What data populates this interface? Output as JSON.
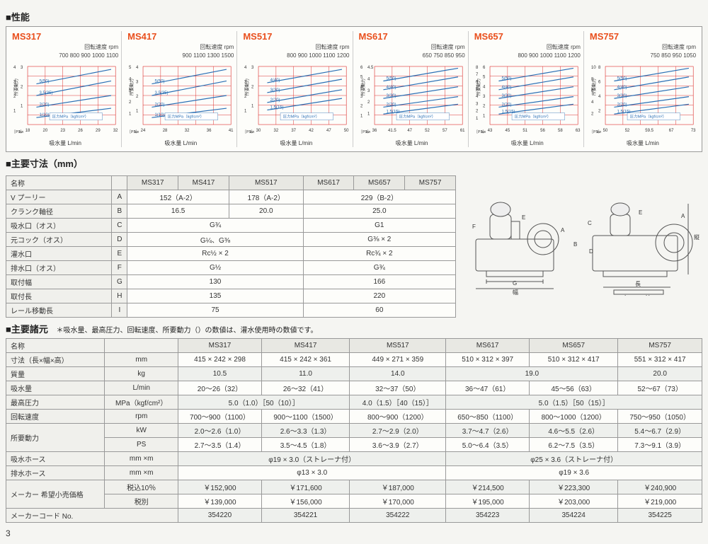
{
  "sections": {
    "perf_title": "■性能",
    "dims_title": "■主要寸法（mm）",
    "specs_title": "■主要諸元",
    "specs_note": "＊吸水量、最高圧力、回転速度、所要動力（）の数値は、灌水使用時の数値です。"
  },
  "page_number": "3",
  "chart_common": {
    "rpm_label": "回転速度 rpm",
    "y_label_left": "［PS］",
    "y_label_right": "所要動力",
    "y_unit": "kw",
    "x_label": "吸水量 L/min",
    "pressure_label": "圧力MPa（kgf/cm²）",
    "line_color": "#2a6fb5",
    "grid_color": "#d60000",
    "bg_color": "#fdfdfa",
    "axis_color": "#333"
  },
  "charts": [
    {
      "model": "MS317",
      "rpm_ticks": [
        "700",
        "800",
        "900",
        "1000",
        "1100"
      ],
      "x_ticks": [
        "18",
        "20",
        "23",
        "26",
        "29",
        "32"
      ],
      "y_ps": [
        "1",
        "2",
        "3",
        "4"
      ],
      "y_kw": [
        "1",
        "2",
        "3"
      ],
      "lines": [
        {
          "label": "5(50)",
          "pts": [
            [
              0.1,
              0.3
            ],
            [
              0.95,
              0.05
            ]
          ]
        },
        {
          "label": "3.5(35)",
          "pts": [
            [
              0.1,
              0.5
            ],
            [
              0.95,
              0.25
            ]
          ]
        },
        {
          "label": "2(20)",
          "pts": [
            [
              0.1,
              0.7
            ],
            [
              0.95,
              0.5
            ]
          ]
        },
        {
          "label": "1(10)",
          "pts": [
            [
              0.1,
              0.88
            ],
            [
              0.95,
              0.72
            ]
          ]
        }
      ]
    },
    {
      "model": "MS417",
      "rpm_ticks": [
        "900",
        "1100",
        "1300",
        "1500"
      ],
      "x_ticks": [
        "24",
        "28",
        "32",
        "36",
        "41"
      ],
      "y_ps": [
        "1",
        "2",
        "3",
        "4",
        "5"
      ],
      "y_kw": [
        "1",
        "2",
        "3",
        "4"
      ],
      "lines": [
        {
          "label": "5(50)",
          "pts": [
            [
              0.1,
              0.3
            ],
            [
              0.95,
              0.05
            ]
          ]
        },
        {
          "label": "3.5(35)",
          "pts": [
            [
              0.1,
              0.5
            ],
            [
              0.95,
              0.25
            ]
          ]
        },
        {
          "label": "2(20)",
          "pts": [
            [
              0.1,
              0.7
            ],
            [
              0.95,
              0.5
            ]
          ]
        },
        {
          "label": "1(10)",
          "pts": [
            [
              0.1,
              0.88
            ],
            [
              0.95,
              0.72
            ]
          ]
        }
      ]
    },
    {
      "model": "MS517",
      "rpm_ticks": [
        "800",
        "900",
        "1000",
        "1100",
        "1200"
      ],
      "x_ticks": [
        "30",
        "32",
        "37",
        "42",
        "47",
        "50"
      ],
      "y_ps": [
        "1",
        "2",
        "3",
        "4"
      ],
      "y_kw": [
        "1",
        "2",
        "3"
      ],
      "lines": [
        {
          "label": "4(40)",
          "pts": [
            [
              0.1,
              0.28
            ],
            [
              0.95,
              0.05
            ]
          ]
        },
        {
          "label": "3(30)",
          "pts": [
            [
              0.1,
              0.45
            ],
            [
              0.95,
              0.22
            ]
          ]
        },
        {
          "label": "2(20)",
          "pts": [
            [
              0.1,
              0.62
            ],
            [
              0.95,
              0.4
            ]
          ]
        },
        {
          "label": "1.5(15)",
          "pts": [
            [
              0.1,
              0.75
            ],
            [
              0.95,
              0.55
            ]
          ]
        }
      ]
    },
    {
      "model": "MS617",
      "rpm_ticks": [
        "650",
        "750",
        "850",
        "950"
      ],
      "x_ticks": [
        "36",
        "41.5",
        "47",
        "52",
        "57",
        "61"
      ],
      "y_ps": [
        "1",
        "2",
        "3",
        "4",
        "5",
        "6"
      ],
      "y_kw": [
        "1",
        "2",
        "3",
        "4",
        "4.5"
      ],
      "lines": [
        {
          "label": "5(50)",
          "pts": [
            [
              0.1,
              0.25
            ],
            [
              0.95,
              0.03
            ]
          ]
        },
        {
          "label": "4(40)",
          "pts": [
            [
              0.1,
              0.4
            ],
            [
              0.95,
              0.18
            ]
          ]
        },
        {
          "label": "3(30)",
          "pts": [
            [
              0.1,
              0.55
            ],
            [
              0.95,
              0.35
            ]
          ]
        },
        {
          "label": "2(20)",
          "pts": [
            [
              0.1,
              0.7
            ],
            [
              0.95,
              0.52
            ]
          ]
        },
        {
          "label": "1.5(15)",
          "pts": [
            [
              0.1,
              0.82
            ],
            [
              0.95,
              0.65
            ]
          ]
        }
      ]
    },
    {
      "model": "MS657",
      "rpm_ticks": [
        "800",
        "900",
        "1000",
        "1100",
        "1200"
      ],
      "x_ticks": [
        "43",
        "45",
        "51",
        "56",
        "58",
        "63"
      ],
      "y_ps": [
        "1",
        "2",
        "3",
        "4",
        "5",
        "6",
        "7",
        "8"
      ],
      "y_kw": [
        "1",
        "2",
        "3",
        "4",
        "5",
        "6"
      ],
      "lines": [
        {
          "label": "5(50)",
          "pts": [
            [
              0.1,
              0.25
            ],
            [
              0.95,
              0.03
            ]
          ]
        },
        {
          "label": "4(40)",
          "pts": [
            [
              0.1,
              0.4
            ],
            [
              0.95,
              0.18
            ]
          ]
        },
        {
          "label": "3(30)",
          "pts": [
            [
              0.1,
              0.55
            ],
            [
              0.95,
              0.35
            ]
          ]
        },
        {
          "label": "2(20)",
          "pts": [
            [
              0.1,
              0.7
            ],
            [
              0.95,
              0.52
            ]
          ]
        },
        {
          "label": "1.5(15)",
          "pts": [
            [
              0.1,
              0.82
            ],
            [
              0.95,
              0.65
            ]
          ]
        }
      ]
    },
    {
      "model": "MS757",
      "rpm_ticks": [
        "750",
        "850",
        "950",
        "1050"
      ],
      "x_ticks": [
        "50",
        "52",
        "59.5",
        "67",
        "73"
      ],
      "y_ps": [
        "2",
        "4",
        "6",
        "8",
        "10"
      ],
      "y_kw": [
        "2",
        "4",
        "6",
        "8"
      ],
      "lines": [
        {
          "label": "5(50)",
          "pts": [
            [
              0.1,
              0.25
            ],
            [
              0.95,
              0.03
            ]
          ]
        },
        {
          "label": "4(40)",
          "pts": [
            [
              0.1,
              0.4
            ],
            [
              0.95,
              0.18
            ]
          ]
        },
        {
          "label": "3(30)",
          "pts": [
            [
              0.1,
              0.55
            ],
            [
              0.95,
              0.35
            ]
          ]
        },
        {
          "label": "2(20)",
          "pts": [
            [
              0.1,
              0.7
            ],
            [
              0.95,
              0.52
            ]
          ]
        },
        {
          "label": "1.5(15)",
          "pts": [
            [
              0.1,
              0.82
            ],
            [
              0.95,
              0.65
            ]
          ]
        }
      ]
    }
  ],
  "dims": {
    "models": [
      "MS317",
      "MS417",
      "MS517",
      "MS617",
      "MS657",
      "MS757"
    ],
    "rows": [
      {
        "label": "名称",
        "key": "",
        "cells": [
          {
            "span": 1,
            "v": "MS317"
          },
          {
            "span": 1,
            "v": "MS417"
          },
          {
            "span": 1,
            "v": "MS517"
          },
          {
            "span": 1,
            "v": "MS617"
          },
          {
            "span": 1,
            "v": "MS657"
          },
          {
            "span": 1,
            "v": "MS757"
          }
        ],
        "header": true
      },
      {
        "label": "V プーリー",
        "key": "A",
        "cells": [
          {
            "span": 2,
            "v": "152（A-2）"
          },
          {
            "span": 1,
            "v": "178（A-2）"
          },
          {
            "span": 3,
            "v": "229（B-2）"
          }
        ]
      },
      {
        "label": "クランク軸径",
        "key": "B",
        "cells": [
          {
            "span": 2,
            "v": "16.5"
          },
          {
            "span": 1,
            "v": "20.0"
          },
          {
            "span": 3,
            "v": "25.0"
          }
        ]
      },
      {
        "label": "吸水口（オス）",
        "key": "C",
        "cells": [
          {
            "span": 3,
            "v": "G¾"
          },
          {
            "span": 3,
            "v": "G1"
          }
        ]
      },
      {
        "label": "元コック（オス）",
        "key": "D",
        "cells": [
          {
            "span": 3,
            "v": "G¼、G⅜"
          },
          {
            "span": 3,
            "v": "G⅜ × 2"
          }
        ]
      },
      {
        "label": "灌水口",
        "key": "E",
        "cells": [
          {
            "span": 3,
            "v": "Rc½ × 2"
          },
          {
            "span": 3,
            "v": "Rc¾ × 2"
          }
        ]
      },
      {
        "label": "排水口（オス）",
        "key": "F",
        "cells": [
          {
            "span": 3,
            "v": "G½"
          },
          {
            "span": 3,
            "v": "G¾"
          }
        ]
      },
      {
        "label": "取付幅",
        "key": "G",
        "cells": [
          {
            "span": 3,
            "v": "130"
          },
          {
            "span": 3,
            "v": "166"
          }
        ]
      },
      {
        "label": "取付長",
        "key": "H",
        "cells": [
          {
            "span": 3,
            "v": "135"
          },
          {
            "span": 3,
            "v": "220"
          }
        ]
      },
      {
        "label": "レール移動長",
        "key": "I",
        "cells": [
          {
            "span": 3,
            "v": "75"
          },
          {
            "span": 3,
            "v": "60"
          }
        ]
      }
    ]
  },
  "diagram_labels": {
    "A": "A",
    "B": "B",
    "C": "C",
    "D": "D",
    "E": "E",
    "F": "F",
    "G": "G",
    "H": "H",
    "I": "I",
    "width": "幅",
    "length": "長",
    "height": "縦"
  },
  "specs": {
    "head": [
      "名称",
      "",
      "MS317",
      "MS417",
      "MS517",
      "MS617",
      "MS657",
      "MS757"
    ],
    "rows": [
      {
        "label": "寸法（長×幅×高）",
        "unit": "mm",
        "cells": [
          "415 × 242 × 298",
          "415 × 242 × 361",
          "449 × 271 × 359",
          "510 × 312 × 397",
          "510 × 312 × 417",
          "551 × 312 × 417"
        ]
      },
      {
        "label": "質量",
        "unit": "kg",
        "cells": [
          "10.5",
          "11.0",
          "14.0",
          {
            "span": 2,
            "v": "19.0"
          },
          "20.0"
        ]
      },
      {
        "label": "吸水量",
        "unit": "L/min",
        "cells": [
          "20～26（32）",
          "26～32（41）",
          "32～37（50）",
          "36～47（61）",
          "45～56（63）",
          "52～67（73）"
        ]
      },
      {
        "label": "最高圧力",
        "unit": "MPa（kgf/cm²）",
        "cells": [
          {
            "span": 2,
            "v": "5.0（1.0）［50（10）］"
          },
          "4.0（1.5）［40（15）］",
          {
            "span": 3,
            "v": "5.0（1.5）［50（15）］"
          }
        ]
      },
      {
        "label": "回転速度",
        "unit": "rpm",
        "cells": [
          "700～900（1100）",
          "900～1100（1500）",
          "800～900（1200）",
          "650～850（1100）",
          "800～1000（1200）",
          "750～950（1050）"
        ]
      },
      {
        "label": "所要動力",
        "unit": "kW",
        "rowspan": 2,
        "cells": [
          "2.0～2.6（1.0）",
          "2.6～3.3（1.3）",
          "2.7～2.9（2.0）",
          "3.7～4.7（2.6）",
          "4.6～5.5（2.6）",
          "5.4～6.7（2.9）"
        ]
      },
      {
        "label": "",
        "unit": "PS",
        "cells": [
          "2.7～3.5（1.4）",
          "3.5～4.5（1.8）",
          "3.6～3.9（2.7）",
          "5.0～6.4（3.5）",
          "6.2～7.5（3.5）",
          "7.3～9.1（3.9）"
        ]
      },
      {
        "label": "吸水ホース",
        "unit": "mm ×m",
        "cells": [
          {
            "span": 3,
            "v": "φ19 × 3.0（ストレーナ付）"
          },
          {
            "span": 3,
            "v": "φ25 × 3.6（ストレーナ付）"
          }
        ]
      },
      {
        "label": "排水ホース",
        "unit": "mm ×m",
        "cells": [
          {
            "span": 3,
            "v": "φ13 × 3.0"
          },
          {
            "span": 3,
            "v": "φ19 × 3.6"
          }
        ]
      },
      {
        "label": "メーカー",
        "unit": "税込10％",
        "rowspan": 2,
        "label2": "希望小売価格",
        "cells": [
          "￥152,900",
          "￥171,600",
          "￥187,000",
          "￥214,500",
          "￥223,300",
          "￥240,900"
        ]
      },
      {
        "label": "",
        "unit": "税別",
        "cells": [
          "￥139,000",
          "￥156,000",
          "￥170,000",
          "￥195,000",
          "￥203,000",
          "￥219,000"
        ]
      },
      {
        "label": "メーカーコード No.",
        "unit": "",
        "cells": [
          "354220",
          "354221",
          "354222",
          "354223",
          "354224",
          "354225"
        ]
      }
    ]
  }
}
